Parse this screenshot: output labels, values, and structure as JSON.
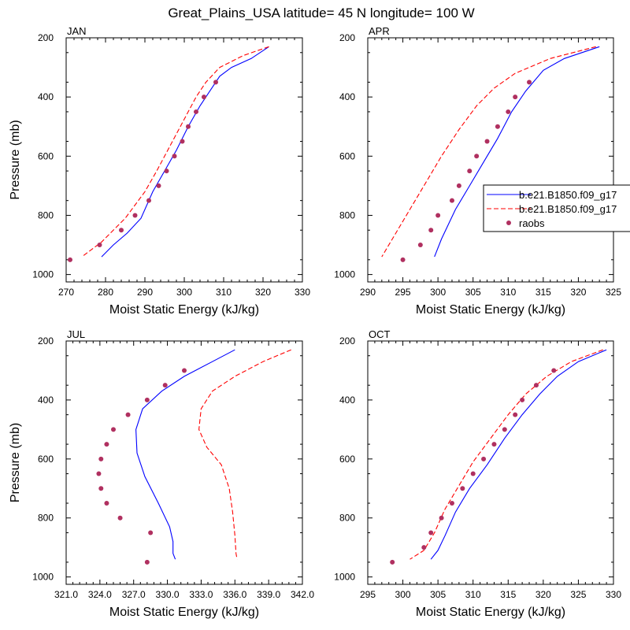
{
  "figure": {
    "title": "Great_Plains_USA  latitude= 45 N longitude= 100 W"
  },
  "legend": {
    "entries": [
      {
        "label": "b.e21.B1850.f09_g17",
        "color": "#0000ff",
        "style": "solid"
      },
      {
        "label": "b.e21.B1850.f09_g17",
        "color": "#ff0000",
        "style": "dashed"
      },
      {
        "label": "raobs",
        "color": "#b03060",
        "style": "marker"
      }
    ]
  },
  "chart_data": [
    {
      "type": "line",
      "panel_label": "JAN",
      "xlabel": "Moist Static Energy (kJ/kg)",
      "ylabel": "Pressure (mb)",
      "xlim": [
        270,
        330
      ],
      "ylim": [
        200,
        1025
      ],
      "y_reversed": true,
      "xticks": [
        "270",
        "280",
        "290",
        "300",
        "310",
        "320",
        "330"
      ],
      "yticks": [
        "200",
        "400",
        "600",
        "800",
        "1000"
      ],
      "series": [
        {
          "color": "#0000ff",
          "style": "solid",
          "x": [
            321.5,
            317,
            312,
            309,
            306.5,
            304,
            301,
            298,
            295,
            292,
            289,
            285.5,
            282,
            279
          ],
          "y": [
            230,
            270,
            300,
            330,
            380,
            430,
            500,
            580,
            650,
            720,
            810,
            860,
            900,
            940
          ]
        },
        {
          "color": "#ff0000",
          "style": "dashed",
          "x": [
            321.5,
            315,
            309,
            305.5,
            303,
            301,
            299,
            297,
            295,
            293,
            290,
            285,
            279,
            274
          ],
          "y": [
            230,
            260,
            300,
            350,
            400,
            450,
            500,
            550,
            600,
            650,
            720,
            810,
            890,
            940
          ]
        },
        {
          "color": "#b03060",
          "style": "marker",
          "x": [
            308,
            305,
            303,
            301,
            299.5,
            297.5,
            295.5,
            293.5,
            291,
            287.5,
            284,
            278.5,
            271
          ],
          "y": [
            350,
            400,
            450,
            500,
            550,
            600,
            650,
            700,
            750,
            800,
            850,
            900,
            950
          ]
        }
      ]
    },
    {
      "type": "line",
      "panel_label": "APR",
      "xlabel": "Moist Static Energy (kJ/kg)",
      "ylabel": "",
      "xlim": [
        290,
        325
      ],
      "ylim": [
        200,
        1025
      ],
      "y_reversed": true,
      "xticks": [
        "290",
        "295",
        "300",
        "305",
        "310",
        "315",
        "320",
        "325"
      ],
      "yticks": [
        "200",
        "400",
        "600",
        "800",
        "1000"
      ],
      "series": [
        {
          "color": "#0000ff",
          "style": "solid",
          "x": [
            323,
            318,
            315,
            312.5,
            310.5,
            308.5,
            306.5,
            304.5,
            302.5,
            300.5,
            299.5
          ],
          "y": [
            230,
            270,
            310,
            380,
            450,
            540,
            620,
            700,
            780,
            880,
            940
          ]
        },
        {
          "color": "#ff0000",
          "style": "dashed",
          "x": [
            322.5,
            316,
            311,
            308,
            305.5,
            303,
            300.5,
            298.5,
            296,
            293.5,
            292
          ],
          "y": [
            230,
            270,
            320,
            370,
            430,
            510,
            600,
            680,
            780,
            880,
            940
          ]
        },
        {
          "color": "#b03060",
          "style": "marker",
          "x": [
            313,
            311,
            310,
            308.5,
            307,
            305.5,
            304.5,
            303,
            302,
            300,
            299,
            297.5,
            295
          ],
          "y": [
            350,
            400,
            450,
            500,
            550,
            600,
            650,
            700,
            750,
            800,
            850,
            900,
            950
          ]
        }
      ]
    },
    {
      "type": "line",
      "panel_label": "JUL",
      "xlabel": "Moist Static Energy (kJ/kg)",
      "ylabel": "Pressure (mb)",
      "xlim": [
        321,
        342
      ],
      "ylim": [
        200,
        1025
      ],
      "y_reversed": true,
      "xticks": [
        "321.0",
        "324.0",
        "327.0",
        "330.0",
        "333.0",
        "336.0",
        "339.0",
        "342.0"
      ],
      "yticks": [
        "200",
        "400",
        "600",
        "800",
        "1000"
      ],
      "series": [
        {
          "color": "#0000ff",
          "style": "solid",
          "x": [
            336,
            334,
            331.5,
            329.5,
            327.8,
            327.2,
            327.3,
            328,
            329.2,
            330.2,
            330.5,
            330.5,
            330.7
          ],
          "y": [
            230,
            270,
            320,
            370,
            430,
            500,
            580,
            660,
            750,
            830,
            880,
            920,
            940
          ]
        },
        {
          "color": "#ff0000",
          "style": "dashed",
          "x": [
            341,
            338.5,
            336,
            334,
            333,
            332.8,
            333.5,
            334.8,
            335.5,
            335.8,
            336,
            336.1,
            336.2
          ],
          "y": [
            230,
            270,
            320,
            370,
            430,
            500,
            560,
            620,
            700,
            780,
            860,
            920,
            940
          ]
        },
        {
          "color": "#b03060",
          "style": "marker",
          "x": [
            331.5,
            329.8,
            328.2,
            326.5,
            325.2,
            324.6,
            324.1,
            323.9,
            324.1,
            324.6,
            325.8,
            328.5,
            328.2
          ],
          "y": [
            300,
            350,
            400,
            450,
            500,
            550,
            600,
            650,
            700,
            750,
            800,
            850,
            950
          ]
        }
      ]
    },
    {
      "type": "line",
      "panel_label": "OCT",
      "xlabel": "Moist Static Energy (kJ/kg)",
      "ylabel": "",
      "xlim": [
        295,
        330
      ],
      "ylim": [
        200,
        1025
      ],
      "y_reversed": true,
      "xticks": [
        "295",
        "300",
        "305",
        "310",
        "315",
        "320",
        "325",
        "330"
      ],
      "yticks": [
        "200",
        "400",
        "600",
        "800",
        "1000"
      ],
      "series": [
        {
          "color": "#0000ff",
          "style": "solid",
          "x": [
            329,
            325,
            322,
            319.5,
            317,
            314.5,
            312,
            309.5,
            307.5,
            306,
            305,
            304
          ],
          "y": [
            230,
            270,
            320,
            380,
            450,
            530,
            620,
            700,
            780,
            860,
            910,
            940
          ]
        },
        {
          "color": "#ff0000",
          "style": "dashed",
          "x": [
            328.5,
            324,
            320.5,
            317.5,
            315,
            312.5,
            310,
            308,
            306,
            304.5,
            303,
            301
          ],
          "y": [
            230,
            270,
            320,
            380,
            450,
            530,
            610,
            690,
            770,
            850,
            910,
            940
          ]
        },
        {
          "color": "#b03060",
          "style": "marker",
          "x": [
            321.5,
            319,
            317,
            316,
            314.5,
            313,
            311.5,
            310,
            308.5,
            307,
            305.5,
            304,
            303,
            298.5
          ],
          "y": [
            300,
            350,
            400,
            450,
            500,
            550,
            600,
            650,
            700,
            750,
            800,
            850,
            900,
            950
          ]
        }
      ]
    }
  ]
}
